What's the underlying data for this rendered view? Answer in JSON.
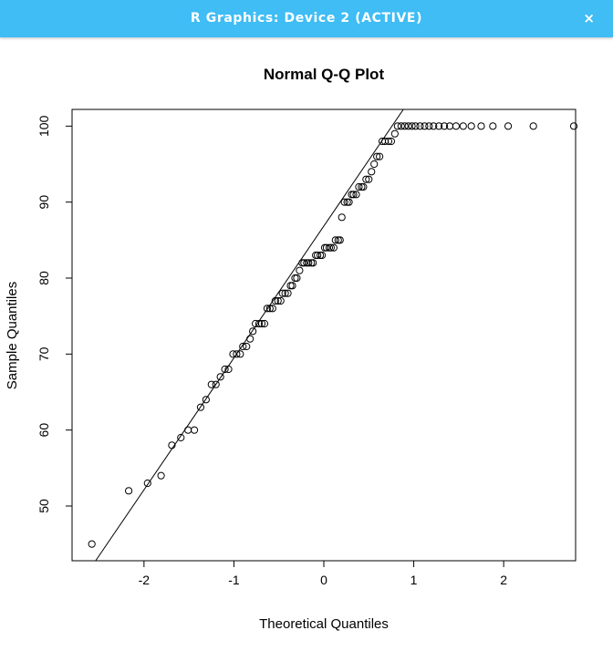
{
  "window": {
    "title": "R Graphics: Device 2 (ACTIVE)",
    "close_glyph": "×",
    "close_icon": "close-icon",
    "titlebar_color": "#3fbdf4"
  },
  "chart_data": {
    "type": "scatter",
    "title": "Normal Q-Q Plot",
    "xlabel": "Theoretical Quantiles",
    "ylabel": "Sample Quantiles",
    "xlim": [
      -2.8,
      2.8
    ],
    "ylim": [
      42.8,
      102.2
    ],
    "xticks": [
      -2,
      -1,
      0,
      1,
      2
    ],
    "yticks": [
      50,
      60,
      70,
      80,
      90,
      100
    ],
    "grid": false,
    "point_style": "open-circle",
    "reference_line": {
      "p1": [
        -1.95,
        53.0
      ],
      "p2": [
        0.7,
        99.0
      ]
    },
    "points": [
      [
        -2.58,
        45
      ],
      [
        -2.17,
        52
      ],
      [
        -1.96,
        53
      ],
      [
        -1.81,
        54
      ],
      [
        -1.69,
        58
      ],
      [
        -1.59,
        59
      ],
      [
        -1.51,
        60
      ],
      [
        -1.44,
        60
      ],
      [
        -1.37,
        63
      ],
      [
        -1.31,
        64
      ],
      [
        -1.25,
        66
      ],
      [
        -1.2,
        66
      ],
      [
        -1.15,
        67
      ],
      [
        -1.1,
        68
      ],
      [
        -1.06,
        68
      ],
      [
        -1.01,
        70
      ],
      [
        -0.97,
        70
      ],
      [
        -0.93,
        70
      ],
      [
        -0.9,
        71
      ],
      [
        -0.86,
        71
      ],
      [
        -0.82,
        72
      ],
      [
        -0.79,
        73
      ],
      [
        -0.76,
        74
      ],
      [
        -0.72,
        74
      ],
      [
        -0.69,
        74
      ],
      [
        -0.66,
        74
      ],
      [
        -0.63,
        76
      ],
      [
        -0.6,
        76
      ],
      [
        -0.57,
        76
      ],
      [
        -0.54,
        77
      ],
      [
        -0.51,
        77
      ],
      [
        -0.48,
        77
      ],
      [
        -0.46,
        78
      ],
      [
        -0.43,
        78
      ],
      [
        -0.4,
        78
      ],
      [
        -0.37,
        79
      ],
      [
        -0.35,
        79
      ],
      [
        -0.32,
        80
      ],
      [
        -0.3,
        80
      ],
      [
        -0.27,
        81
      ],
      [
        -0.24,
        82
      ],
      [
        -0.22,
        82
      ],
      [
        -0.19,
        82
      ],
      [
        -0.17,
        82
      ],
      [
        -0.14,
        82
      ],
      [
        -0.12,
        82
      ],
      [
        -0.09,
        83
      ],
      [
        -0.07,
        83
      ],
      [
        -0.04,
        83
      ],
      [
        -0.02,
        83
      ],
      [
        0.01,
        84
      ],
      [
        0.03,
        84
      ],
      [
        0.06,
        84
      ],
      [
        0.08,
        84
      ],
      [
        0.11,
        84
      ],
      [
        0.13,
        85
      ],
      [
        0.16,
        85
      ],
      [
        0.18,
        85
      ],
      [
        0.2,
        88
      ],
      [
        0.23,
        90
      ],
      [
        0.26,
        90
      ],
      [
        0.28,
        90
      ],
      [
        0.31,
        91
      ],
      [
        0.33,
        91
      ],
      [
        0.36,
        91
      ],
      [
        0.39,
        92
      ],
      [
        0.42,
        92
      ],
      [
        0.44,
        92
      ],
      [
        0.47,
        93
      ],
      [
        0.5,
        93
      ],
      [
        0.53,
        94
      ],
      [
        0.56,
        95
      ],
      [
        0.59,
        96
      ],
      [
        0.62,
        96
      ],
      [
        0.65,
        98
      ],
      [
        0.68,
        98
      ],
      [
        0.72,
        98
      ],
      [
        0.75,
        98
      ],
      [
        0.79,
        99
      ],
      [
        0.82,
        100
      ],
      [
        0.86,
        100
      ],
      [
        0.9,
        100
      ],
      [
        0.94,
        100
      ],
      [
        0.98,
        100
      ],
      [
        1.02,
        100
      ],
      [
        1.07,
        100
      ],
      [
        1.12,
        100
      ],
      [
        1.17,
        100
      ],
      [
        1.22,
        100
      ],
      [
        1.28,
        100
      ],
      [
        1.34,
        100
      ],
      [
        1.4,
        100
      ],
      [
        1.47,
        100
      ],
      [
        1.55,
        100
      ],
      [
        1.64,
        100
      ],
      [
        1.75,
        100
      ],
      [
        1.88,
        100
      ],
      [
        2.05,
        100
      ],
      [
        2.33,
        100
      ],
      [
        2.78,
        100
      ]
    ]
  }
}
